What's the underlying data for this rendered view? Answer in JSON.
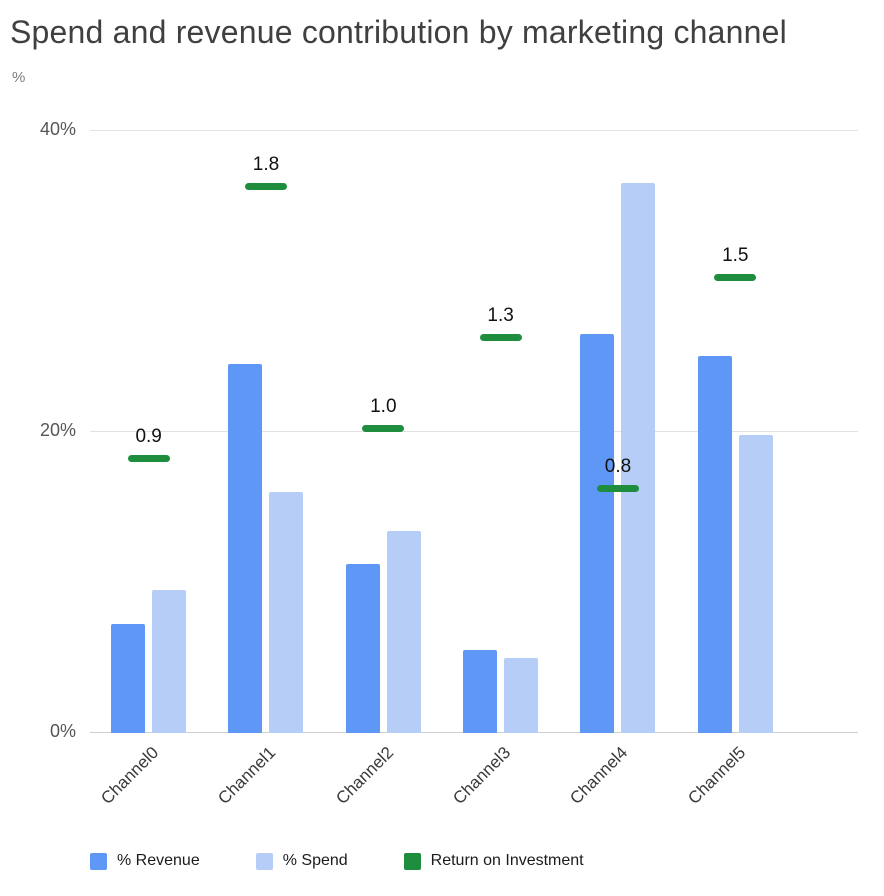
{
  "chart_data": {
    "type": "bar",
    "title": "Spend and revenue contribution by marketing channel",
    "ylabel": "%",
    "categories": [
      "Channel0",
      "Channel1",
      "Channel2",
      "Channel3",
      "Channel4",
      "Channel5"
    ],
    "series": [
      {
        "name": "% Revenue",
        "type": "bar",
        "color": "#5e97f6",
        "values": [
          7.2,
          24.5,
          11.2,
          5.5,
          26.5,
          25.0
        ]
      },
      {
        "name": "% Spend",
        "type": "bar",
        "color": "#b6cdf7",
        "values": [
          9.5,
          16.0,
          13.4,
          5.0,
          36.5,
          19.8
        ]
      },
      {
        "name": "Return on Investment",
        "type": "dash-marker",
        "color": "#1e8e3e",
        "values": [
          0.9,
          1.8,
          1.0,
          1.3,
          0.8,
          1.5
        ],
        "axis_scale": 20
      }
    ],
    "y_ticks": [
      "0%",
      "20%",
      "40%"
    ],
    "ylim": [
      0,
      40
    ],
    "grid": true,
    "legend_position": "bottom"
  }
}
